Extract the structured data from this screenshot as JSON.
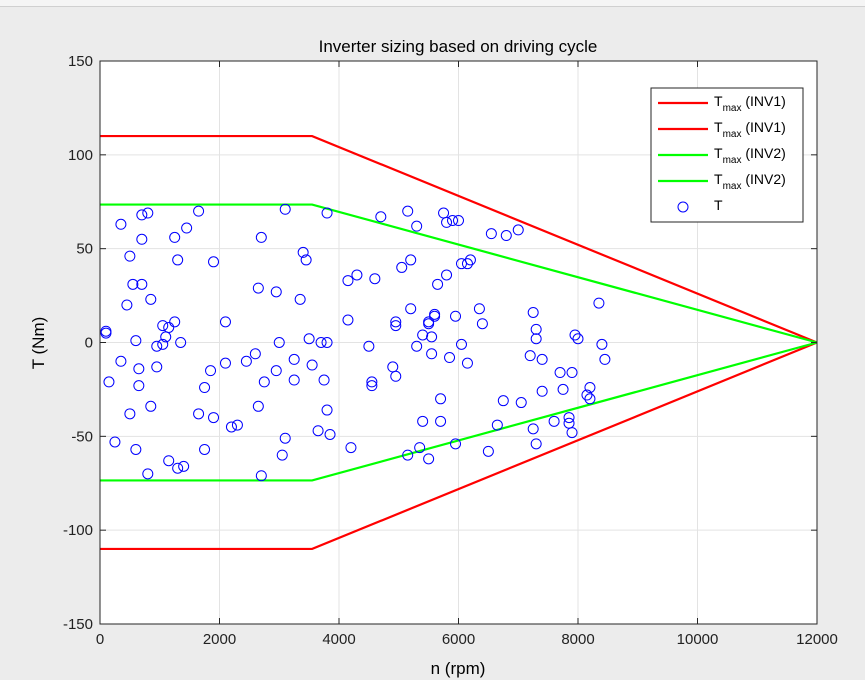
{
  "chart_data": {
    "type": "line",
    "title": "Inverter sizing based on driving cycle",
    "xlabel": "n (rpm)",
    "ylabel": "T (Nm)",
    "xlim": [
      0,
      12000
    ],
    "ylim": [
      -150,
      150
    ],
    "xticks": [
      0,
      2000,
      4000,
      6000,
      8000,
      10000,
      12000
    ],
    "yticks": [
      -150,
      -100,
      -50,
      0,
      50,
      100,
      150
    ],
    "grid": true,
    "legend_placement": "top-right",
    "legend": [
      {
        "main": "T",
        "sub": "max",
        "suffix": " (INV1)",
        "color": "#ff0000",
        "marker": "line"
      },
      {
        "main": "T",
        "sub": "max",
        "suffix": " (INV1)",
        "color": "#ff0000",
        "marker": "line"
      },
      {
        "main": "T",
        "sub": "max",
        "suffix": " (INV2)",
        "color": "#00ff00",
        "marker": "line"
      },
      {
        "main": "T",
        "sub": "max",
        "suffix": " (INV2)",
        "color": "#00ff00",
        "marker": "line"
      },
      {
        "main": "T",
        "sub": "",
        "suffix": "",
        "color": "#0000ff",
        "marker": "circle"
      }
    ],
    "series": [
      {
        "color": "#ff0000",
        "x": [
          0,
          3550,
          12000
        ],
        "y": [
          110,
          110,
          0
        ]
      },
      {
        "color": "#ff0000",
        "x": [
          0,
          3550,
          12000
        ],
        "y": [
          -110,
          -110,
          0
        ]
      },
      {
        "color": "#00ff00",
        "x": [
          0,
          3550,
          12000
        ],
        "y": [
          73.5,
          73.5,
          0
        ]
      },
      {
        "color": "#00ff00",
        "x": [
          0,
          3550,
          12000
        ],
        "y": [
          -73.5,
          -73.5,
          0
        ]
      }
    ],
    "scatter": {
      "color": "#0000ff",
      "points": [
        [
          100,
          6
        ],
        [
          100,
          5
        ],
        [
          150,
          -21
        ],
        [
          250,
          -53
        ],
        [
          350,
          -10
        ],
        [
          350,
          63
        ],
        [
          450,
          20
        ],
        [
          500,
          46
        ],
        [
          500,
          -38
        ],
        [
          550,
          31
        ],
        [
          600,
          -57
        ],
        [
          600,
          1
        ],
        [
          650,
          -14
        ],
        [
          650,
          -23
        ],
        [
          700,
          68
        ],
        [
          700,
          55
        ],
        [
          700,
          31
        ],
        [
          800,
          69
        ],
        [
          800,
          -70
        ],
        [
          850,
          -34
        ],
        [
          850,
          23
        ],
        [
          950,
          -13
        ],
        [
          950,
          -2
        ],
        [
          1050,
          -1
        ],
        [
          1050,
          9
        ],
        [
          1100,
          3
        ],
        [
          1150,
          8
        ],
        [
          1150,
          -63
        ],
        [
          1250,
          56
        ],
        [
          1250,
          11
        ],
        [
          1300,
          -67
        ],
        [
          1300,
          44
        ],
        [
          1350,
          0
        ],
        [
          1400,
          -66
        ],
        [
          1450,
          61
        ],
        [
          1650,
          70
        ],
        [
          1650,
          -38
        ],
        [
          1750,
          -57
        ],
        [
          1750,
          -24
        ],
        [
          1850,
          -15
        ],
        [
          1900,
          -40
        ],
        [
          1900,
          43
        ],
        [
          2100,
          11
        ],
        [
          2100,
          -11
        ],
        [
          2200,
          -45
        ],
        [
          2300,
          -44
        ],
        [
          2450,
          -10
        ],
        [
          2600,
          -6
        ],
        [
          2650,
          -34
        ],
        [
          2650,
          29
        ],
        [
          2700,
          -71
        ],
        [
          2700,
          56
        ],
        [
          2750,
          -21
        ],
        [
          2950,
          27
        ],
        [
          2950,
          -15
        ],
        [
          3000,
          0
        ],
        [
          3050,
          -60
        ],
        [
          3100,
          -51
        ],
        [
          3100,
          71
        ],
        [
          3250,
          -9
        ],
        [
          3250,
          -20
        ],
        [
          3350,
          23
        ],
        [
          3400,
          48
        ],
        [
          3450,
          44
        ],
        [
          3500,
          2
        ],
        [
          3550,
          -12
        ],
        [
          3650,
          -47
        ],
        [
          3700,
          0
        ],
        [
          3750,
          -20
        ],
        [
          3800,
          0
        ],
        [
          3800,
          69
        ],
        [
          3800,
          -36
        ],
        [
          3850,
          -49
        ],
        [
          4150,
          33
        ],
        [
          4150,
          12
        ],
        [
          4200,
          -56
        ],
        [
          4300,
          36
        ],
        [
          4500,
          -2
        ],
        [
          4550,
          -21
        ],
        [
          4550,
          -23
        ],
        [
          4600,
          34
        ],
        [
          4700,
          67
        ],
        [
          4900,
          -13
        ],
        [
          4950,
          -18
        ],
        [
          4950,
          9
        ],
        [
          4950,
          11
        ],
        [
          5050,
          40
        ],
        [
          5150,
          70
        ],
        [
          5150,
          -60
        ],
        [
          5200,
          18
        ],
        [
          5200,
          44
        ],
        [
          5300,
          -2
        ],
        [
          5300,
          62
        ],
        [
          5350,
          -56
        ],
        [
          5400,
          -42
        ],
        [
          5400,
          4
        ],
        [
          5500,
          11
        ],
        [
          5500,
          10
        ],
        [
          5500,
          -62
        ],
        [
          5550,
          3
        ],
        [
          5550,
          -6
        ],
        [
          5600,
          15
        ],
        [
          5600,
          14
        ],
        [
          5650,
          31
        ],
        [
          5700,
          -42
        ],
        [
          5700,
          -30
        ],
        [
          5750,
          69
        ],
        [
          5800,
          36
        ],
        [
          5800,
          64
        ],
        [
          5850,
          -8
        ],
        [
          5900,
          65
        ],
        [
          5950,
          14
        ],
        [
          5950,
          -54
        ],
        [
          6000,
          65
        ],
        [
          6050,
          -1
        ],
        [
          6050,
          42
        ],
        [
          6150,
          -11
        ],
        [
          6150,
          42
        ],
        [
          6200,
          44
        ],
        [
          6350,
          18
        ],
        [
          6400,
          10
        ],
        [
          6500,
          -58
        ],
        [
          6550,
          58
        ],
        [
          6650,
          -44
        ],
        [
          6750,
          -31
        ],
        [
          6800,
          57
        ],
        [
          7000,
          60
        ],
        [
          7050,
          -32
        ],
        [
          7200,
          -7
        ],
        [
          7250,
          16
        ],
        [
          7250,
          -46
        ],
        [
          7300,
          7
        ],
        [
          7300,
          -54
        ],
        [
          7300,
          2
        ],
        [
          7400,
          -26
        ],
        [
          7400,
          -9
        ],
        [
          7600,
          -42
        ],
        [
          7700,
          -16
        ],
        [
          7750,
          -25
        ],
        [
          7850,
          -40
        ],
        [
          7850,
          -43
        ],
        [
          7900,
          -16
        ],
        [
          7900,
          -48
        ],
        [
          7950,
          4
        ],
        [
          8000,
          2
        ],
        [
          8150,
          -28
        ],
        [
          8200,
          -24
        ],
        [
          8200,
          -30
        ],
        [
          8350,
          21
        ],
        [
          8400,
          -1
        ],
        [
          8450,
          -9
        ]
      ]
    }
  }
}
